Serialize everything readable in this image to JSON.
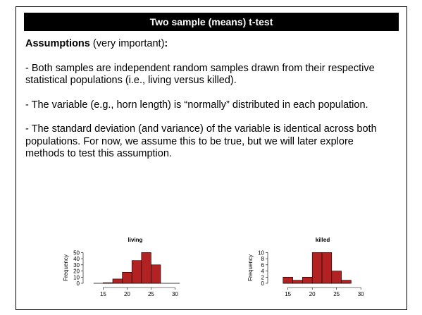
{
  "header": {
    "title": "Two sample (means) t-test"
  },
  "heading": {
    "bold": "Assumptions",
    "normal": " (very important)",
    "colon": ":"
  },
  "paragraphs": [
    "- Both samples are independent random samples drawn from their respective statistical populations (i.e., living versus killed).",
    "- The variable (e.g., horn length) is “normally” distributed in each population.",
    "- The standard deviation (and variance) of the variable is identical across both populations. For now, we assume this to be true, but we will later explore methods to test this assumption."
  ],
  "chart_data": [
    {
      "type": "histogram",
      "title": "living",
      "ylabel": "Frequency",
      "color": "#b22222",
      "bins": [
        13,
        15,
        17,
        19,
        21,
        23,
        25,
        27,
        29,
        31
      ],
      "counts": [
        0,
        1,
        7,
        18,
        37,
        50,
        30,
        0,
        0
      ],
      "xlim": [
        12,
        32
      ],
      "xticks": [
        15,
        20,
        25,
        30
      ],
      "ylim": [
        0,
        55
      ],
      "yticks": [
        0,
        10,
        20,
        30,
        40,
        50
      ]
    },
    {
      "type": "histogram",
      "title": "killed",
      "ylabel": "Frequency",
      "color": "#b22222",
      "bins": [
        14,
        16,
        18,
        20,
        22,
        24,
        26,
        28
      ],
      "counts": [
        2,
        1,
        2,
        10,
        10,
        4,
        1
      ],
      "xlim": [
        12,
        32
      ],
      "xticks": [
        15,
        20,
        25,
        30
      ],
      "ylim": [
        0,
        11
      ],
      "yticks": [
        0,
        2,
        4,
        6,
        8,
        10
      ]
    }
  ]
}
